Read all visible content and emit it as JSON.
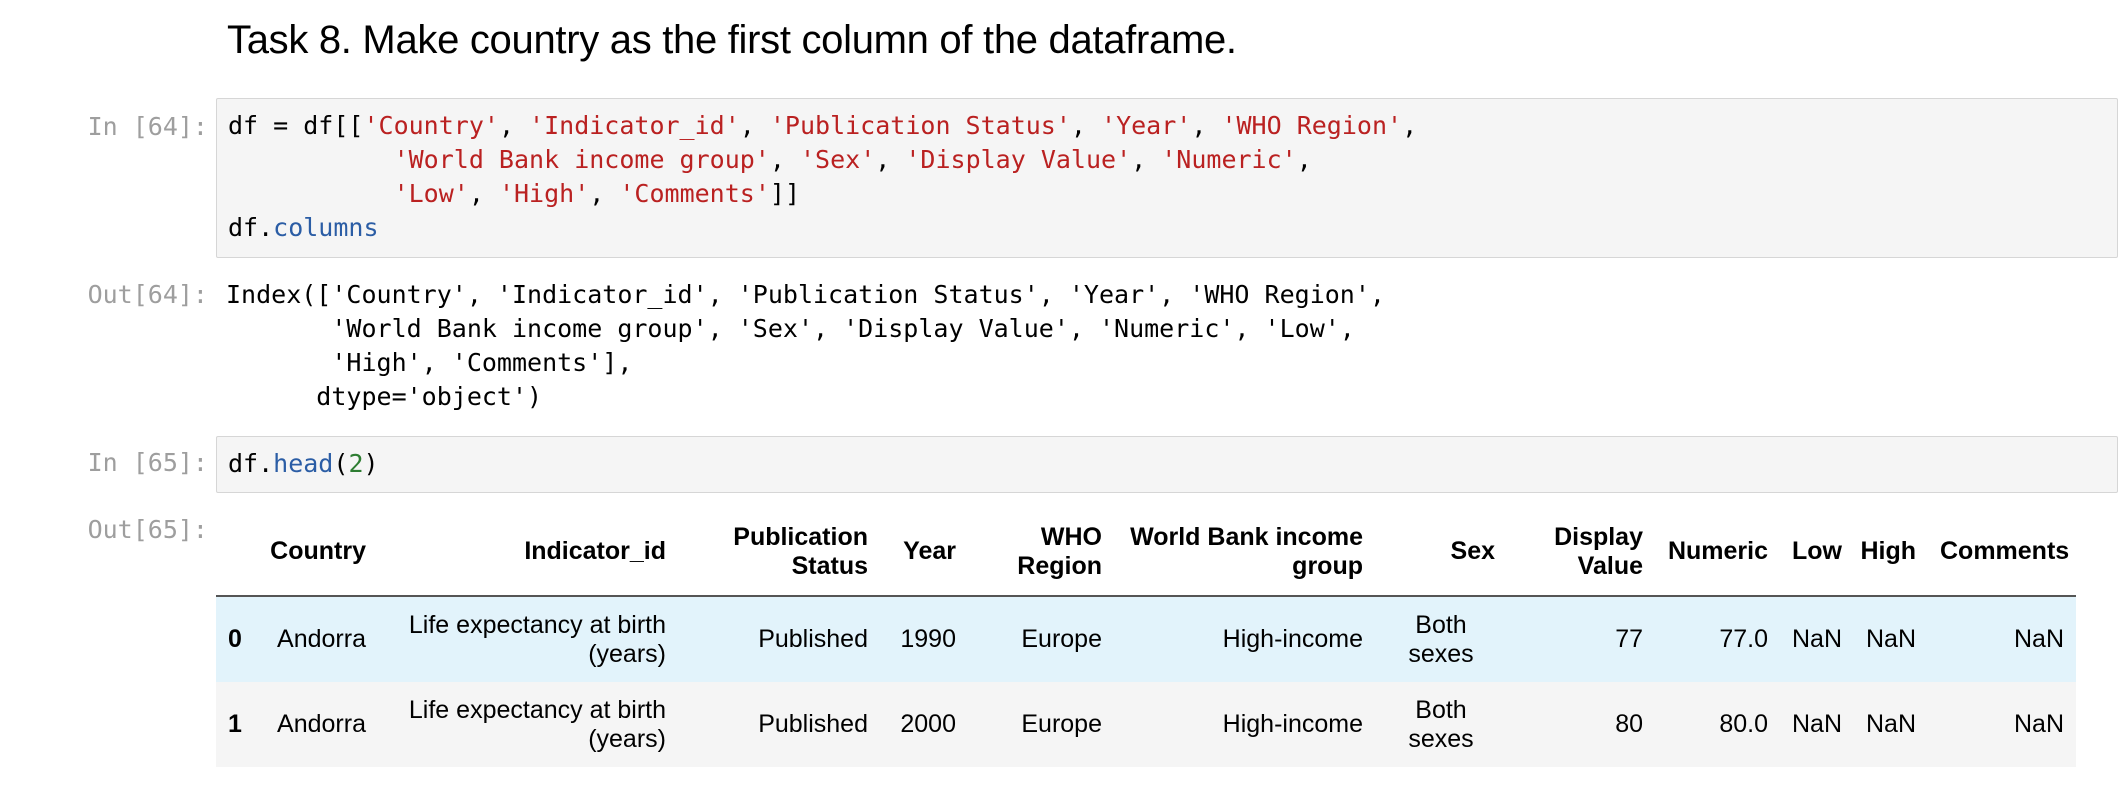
{
  "heading": "Task 8. Make country as the first column of the dataframe.",
  "cells": [
    {
      "prompt": "In [64]:",
      "code_lines": [
        [
          [
            "plain",
            "df = df[["
          ],
          [
            "str",
            "'Country'"
          ],
          [
            "plain",
            ", "
          ],
          [
            "str",
            "'Indicator_id'"
          ],
          [
            "plain",
            ", "
          ],
          [
            "str",
            "'Publication Status'"
          ],
          [
            "plain",
            ", "
          ],
          [
            "str",
            "'Year'"
          ],
          [
            "plain",
            ", "
          ],
          [
            "str",
            "'WHO Region'"
          ],
          [
            "plain",
            ","
          ]
        ],
        [
          [
            "plain",
            "           "
          ],
          [
            "str",
            "'World Bank income group'"
          ],
          [
            "plain",
            ", "
          ],
          [
            "str",
            "'Sex'"
          ],
          [
            "plain",
            ", "
          ],
          [
            "str",
            "'Display Value'"
          ],
          [
            "plain",
            ", "
          ],
          [
            "str",
            "'Numeric'"
          ],
          [
            "plain",
            ","
          ]
        ],
        [
          [
            "plain",
            "           "
          ],
          [
            "str",
            "'Low'"
          ],
          [
            "plain",
            ", "
          ],
          [
            "str",
            "'High'"
          ],
          [
            "plain",
            ", "
          ],
          [
            "str",
            "'Comments'"
          ],
          [
            "plain",
            "]]"
          ]
        ],
        [
          [
            "plain",
            "df."
          ],
          [
            "attr",
            "columns"
          ]
        ]
      ]
    },
    {
      "prompt": "In [65]:",
      "code_lines": [
        [
          [
            "plain",
            "df."
          ],
          [
            "attr",
            "head"
          ],
          [
            "plain",
            "("
          ],
          [
            "num",
            "2"
          ],
          [
            "plain",
            ")"
          ]
        ]
      ]
    }
  ],
  "outputs": [
    {
      "prompt": "Out[64]:",
      "text": "Index(['Country', 'Indicator_id', 'Publication Status', 'Year', 'WHO Region',\n       'World Bank income group', 'Sex', 'Display Value', 'Numeric', 'Low',\n       'High', 'Comments'],\n      dtype='object')"
    },
    {
      "prompt": "Out[65]:"
    }
  ],
  "table": {
    "columns": [
      "",
      "Country",
      "Indicator_id",
      "Publication Status",
      "Year",
      "WHO Region",
      "World Bank income group",
      "Sex",
      "Display Value",
      "Numeric",
      "Low",
      "High",
      "Comments"
    ],
    "rows": [
      [
        "0",
        "Andorra",
        "Life expectancy at birth (years)",
        "Published",
        "1990",
        "Europe",
        "High-income",
        "Both sexes",
        "77",
        "77.0",
        "NaN",
        "NaN",
        "NaN"
      ],
      [
        "1",
        "Andorra",
        "Life expectancy at birth (years)",
        "Published",
        "2000",
        "Europe",
        "High-income",
        "Both sexes",
        "80",
        "80.0",
        "NaN",
        "NaN",
        "NaN"
      ]
    ]
  },
  "colors": {
    "string": "#ba2121",
    "attribute": "#2b5da5",
    "number": "#2e7d32",
    "prompt": "#9e9e9e",
    "hover_row": "#e2f3fb"
  }
}
